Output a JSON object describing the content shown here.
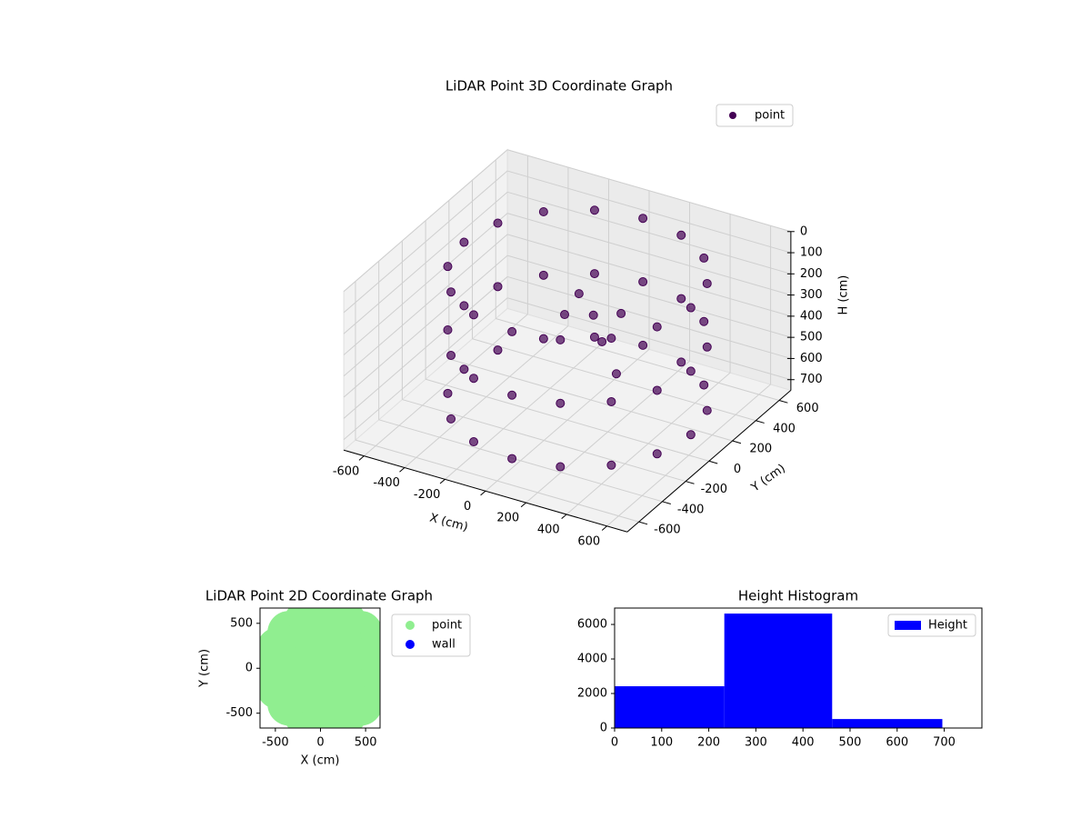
{
  "chart_data": [
    {
      "type": "scatter3d",
      "title": "LiDAR Point 3D Coordinate Graph",
      "xlabel": "X (cm)",
      "ylabel": "Y (cm)",
      "zlabel": "H (cm)",
      "xlim": [
        -700,
        700
      ],
      "ylim": [
        -700,
        700
      ],
      "zlim": [
        750,
        0
      ],
      "xticks": [
        -600,
        -400,
        -200,
        0,
        200,
        400,
        600
      ],
      "yticks": [
        -600,
        -400,
        -200,
        0,
        200,
        400,
        600
      ],
      "zticks": [
        0,
        100,
        200,
        300,
        400,
        500,
        600,
        700
      ],
      "grid": true,
      "legend": "upper right",
      "series": [
        {
          "name": "point",
          "color": "#440154",
          "x": [
            610,
            567,
            446,
            264,
            50,
            -164,
            -346,
            -467,
            -510,
            -467,
            -346,
            -164,
            50,
            264,
            446,
            567,
            610,
            567,
            446,
            264,
            50,
            -164,
            -346,
            -467,
            -510,
            -467,
            -346,
            -164,
            50,
            264,
            446,
            567,
            610,
            567,
            446,
            264,
            50,
            -164,
            -346,
            -467,
            -510,
            -467,
            -346,
            -164,
            50,
            264,
            446,
            567,
            0,
            100,
            200,
            -100,
            300,
            150
          ],
          "y": [
            0,
            214,
            396,
            517,
            560,
            517,
            396,
            214,
            0,
            -214,
            -396,
            -517,
            -560,
            -517,
            -396,
            -214,
            0,
            214,
            396,
            517,
            560,
            517,
            396,
            214,
            0,
            -214,
            -396,
            -517,
            -560,
            -517,
            -396,
            -214,
            0,
            214,
            396,
            517,
            560,
            517,
            396,
            214,
            0,
            -214,
            -396,
            -517,
            -560,
            -517,
            -396,
            -214,
            100,
            50,
            -50,
            150,
            -100,
            200
          ],
          "z": [
            50,
            50,
            50,
            50,
            50,
            50,
            50,
            50,
            50,
            50,
            50,
            50,
            50,
            50,
            50,
            50,
            350,
            350,
            350,
            350,
            350,
            350,
            350,
            350,
            350,
            350,
            350,
            350,
            350,
            350,
            350,
            350,
            650,
            650,
            650,
            650,
            650,
            650,
            650,
            650,
            650,
            650,
            650,
            650,
            650,
            650,
            650,
            650,
            200,
            250,
            300,
            350,
            400,
            300
          ]
        }
      ]
    },
    {
      "type": "scatter",
      "title": "LiDAR Point 2D Coordinate Graph",
      "xlabel": "X (cm)",
      "ylabel": "Y (cm)",
      "xlim": [
        -670,
        660
      ],
      "ylim": [
        -665,
        670
      ],
      "xticks": [
        -500,
        0,
        500
      ],
      "yticks": [
        -500,
        0,
        500
      ],
      "legend": "outside right",
      "series": [
        {
          "name": "point",
          "color": "#90ee90",
          "x": [
            610,
            567,
            446,
            264,
            50,
            -164,
            -346,
            -467,
            -510,
            -467,
            -346,
            -164,
            50,
            264,
            446,
            567,
            0,
            250,
            -250,
            -250,
            250,
            0,
            0,
            350,
            -350,
            480,
            620
          ],
          "y": [
            0,
            214,
            396,
            517,
            560,
            517,
            396,
            214,
            0,
            -214,
            -396,
            -517,
            -560,
            -517,
            -396,
            -214,
            0,
            250,
            250,
            -250,
            -250,
            350,
            -350,
            0,
            0,
            100,
            160
          ]
        },
        {
          "name": "wall",
          "color": "#0000ff",
          "x": [],
          "y": []
        }
      ]
    },
    {
      "type": "histogram",
      "title": "Height Histogram",
      "name": "Height",
      "color": "#0000ff",
      "bins": [
        0,
        233,
        462,
        696
      ],
      "counts": [
        2420,
        6630,
        520
      ],
      "xlim": [
        0,
        780
      ],
      "ylim": [
        0,
        6950
      ],
      "xticks": [
        0,
        100,
        200,
        300,
        400,
        500,
        600,
        700
      ],
      "yticks": [
        0,
        2000,
        4000,
        6000
      ],
      "legend": "upper right"
    }
  ]
}
